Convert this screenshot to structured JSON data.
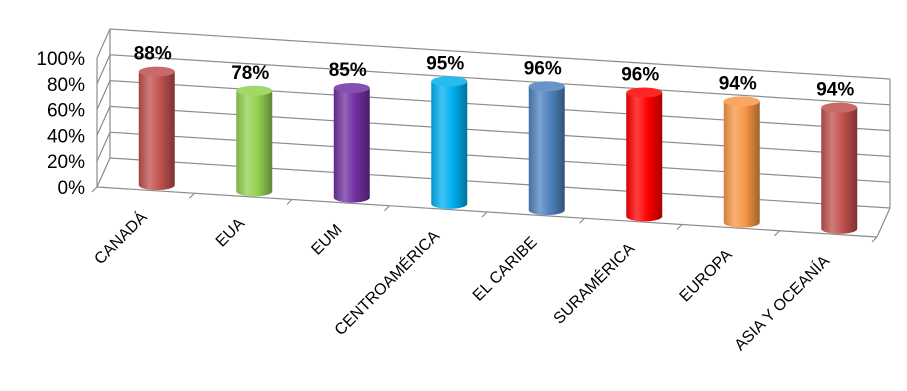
{
  "chart_data": {
    "type": "bar",
    "categories": [
      "CANADÁ",
      "EUA",
      "EUM",
      "CENTROAMÉRICA",
      "EL CARIBE",
      "SURAMÉRICA",
      "EUROPA",
      "ASIA Y OCEANÍA"
    ],
    "values": [
      88,
      78,
      85,
      95,
      96,
      96,
      94,
      94
    ],
    "data_labels": [
      "88%",
      "78%",
      "85%",
      "95%",
      "96%",
      "96%",
      "94%",
      "94%"
    ],
    "y_ticks": [
      "0%",
      "20%",
      "40%",
      "60%",
      "80%",
      "100%"
    ],
    "ylim": [
      0,
      100
    ],
    "grid": true,
    "legend": "none",
    "bar_shape": "cylinder",
    "colors": [
      "#c0504d",
      "#92d050",
      "#7030a0",
      "#00b0f0",
      "#4f81bd",
      "#ff0000",
      "#f79646",
      "#c0504d"
    ]
  }
}
